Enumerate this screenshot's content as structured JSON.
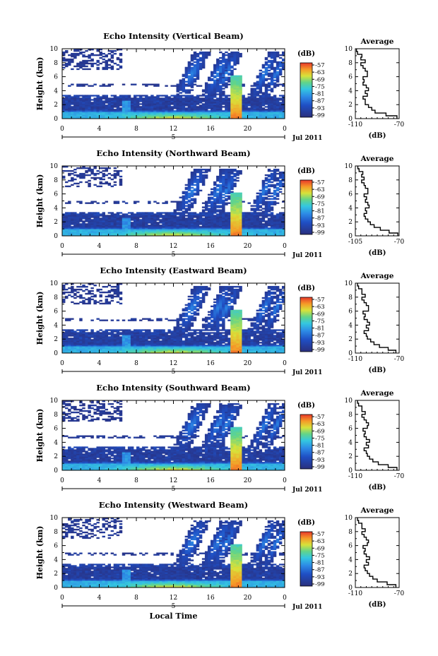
{
  "chart_data": [
    {
      "type": "heatmap",
      "title": "Echo Intensity (Vertical Beam)",
      "ylabel": "Height (km)",
      "x_ticks": [
        "0",
        "4",
        "8",
        "12",
        "16",
        "20",
        "0"
      ],
      "y_ticks": [
        "0",
        "2",
        "4",
        "6",
        "8",
        "10"
      ],
      "xlim": [
        0,
        24
      ],
      "ylim": [
        0,
        10
      ],
      "date_marker": "5",
      "date_label": "Jul 2011",
      "colorbar": {
        "label": "(dB)",
        "ticks": [
          "-57",
          "-63",
          "-69",
          "-75",
          "-81",
          "-87",
          "-93",
          "-99"
        ]
      },
      "average_profile": {
        "title": "Average",
        "xlabel": "(dB)",
        "x_ticks": [
          "-110",
          "-70"
        ],
        "xlim": [
          -110,
          -70
        ],
        "y_ticks": [
          "0",
          "2",
          "4",
          "6",
          "8",
          "10"
        ],
        "heights": [
          0.2,
          0.6,
          1.0,
          1.4,
          1.8,
          2.2,
          2.6,
          3.0,
          3.4,
          3.8,
          4.2,
          4.6,
          5.0,
          5.4,
          5.8,
          6.2,
          6.6,
          7.0,
          7.4,
          7.8,
          8.2,
          8.6,
          9.0,
          9.4,
          9.8
        ],
        "values": [
          -72,
          -82,
          -92,
          -95,
          -98,
          -101,
          -101,
          -103,
          -99,
          -101,
          -98,
          -100,
          -103,
          -102,
          -103,
          -99,
          -99,
          -101,
          -103,
          -105,
          -101,
          -105,
          -104,
          -108,
          -109
        ]
      }
    },
    {
      "type": "heatmap",
      "title": "Echo Intensity (Northward Beam)",
      "ylabel": "Height (km)",
      "x_ticks": [
        "0",
        "4",
        "8",
        "12",
        "16",
        "20",
        "0"
      ],
      "y_ticks": [
        "0",
        "2",
        "4",
        "6",
        "8",
        "10"
      ],
      "xlim": [
        0,
        24
      ],
      "ylim": [
        0,
        10
      ],
      "date_marker": "5",
      "date_label": "Jul 2011",
      "colorbar": {
        "label": "(dB)",
        "ticks": [
          "-57",
          "-63",
          "-69",
          "-75",
          "-81",
          "-87",
          "-93",
          "-99"
        ]
      },
      "average_profile": {
        "title": "Average",
        "xlabel": "(dB)",
        "x_ticks": [
          "-105",
          "-70"
        ],
        "xlim": [
          -105,
          -70
        ],
        "y_ticks": [
          "0",
          "2",
          "4",
          "6",
          "8",
          "10"
        ],
        "heights": [
          0.2,
          0.6,
          1.0,
          1.4,
          1.8,
          2.2,
          2.6,
          3.0,
          3.4,
          3.8,
          4.2,
          4.6,
          5.0,
          5.4,
          5.8,
          6.2,
          6.6,
          7.0,
          7.4,
          7.8,
          8.2,
          8.6,
          9.0,
          9.4,
          9.8
        ],
        "values": [
          -71,
          -78,
          -85,
          -90,
          -93,
          -95,
          -97,
          -98,
          -96,
          -97,
          -94,
          -95,
          -97,
          -96,
          -98,
          -95,
          -95,
          -97,
          -98,
          -100,
          -98,
          -100,
          -99,
          -102,
          -103
        ]
      }
    },
    {
      "type": "heatmap",
      "title": "Echo Intensity (Eastward Beam)",
      "ylabel": "Height (km)",
      "x_ticks": [
        "0",
        "4",
        "8",
        "12",
        "16",
        "20",
        "0"
      ],
      "y_ticks": [
        "0",
        "2",
        "4",
        "6",
        "8",
        "10"
      ],
      "xlim": [
        0,
        24
      ],
      "ylim": [
        0,
        10
      ],
      "date_marker": "5",
      "date_label": "Jul 2011",
      "colorbar": {
        "label": "(dB)",
        "ticks": [
          "-57",
          "-63",
          "-69",
          "-75",
          "-81",
          "-87",
          "-93",
          "-99"
        ]
      },
      "average_profile": {
        "title": "Average",
        "xlabel": "(dB)",
        "x_ticks": [
          "-110",
          "-70"
        ],
        "xlim": [
          -110,
          -70
        ],
        "y_ticks": [
          "0",
          "2",
          "4",
          "6",
          "8",
          "10"
        ],
        "heights": [
          0.2,
          0.6,
          1.0,
          1.4,
          1.8,
          2.2,
          2.6,
          3.0,
          3.4,
          3.8,
          4.2,
          4.6,
          5.0,
          5.4,
          5.8,
          6.2,
          6.6,
          7.0,
          7.4,
          7.8,
          8.2,
          8.6,
          9.0,
          9.4,
          9.8
        ],
        "values": [
          -73,
          -80,
          -88,
          -93,
          -96,
          -99,
          -100,
          -102,
          -98,
          -100,
          -97,
          -99,
          -102,
          -101,
          -103,
          -98,
          -98,
          -100,
          -102,
          -104,
          -101,
          -104,
          -104,
          -107,
          -108
        ]
      }
    },
    {
      "type": "heatmap",
      "title": "Echo Intensity (Southward Beam)",
      "ylabel": "Height (km)",
      "x_ticks": [
        "0",
        "4",
        "8",
        "12",
        "16",
        "20",
        "0"
      ],
      "y_ticks": [
        "0",
        "2",
        "4",
        "6",
        "8",
        "10"
      ],
      "xlim": [
        0,
        24
      ],
      "ylim": [
        0,
        10
      ],
      "date_marker": "5",
      "date_label": "Jul 2011",
      "colorbar": {
        "label": "(dB)",
        "ticks": [
          "-57",
          "-63",
          "-69",
          "-75",
          "-81",
          "-87",
          "-93",
          "-99"
        ]
      },
      "average_profile": {
        "title": "Average",
        "xlabel": "(dB)",
        "x_ticks": [
          "-110",
          "-70"
        ],
        "xlim": [
          -110,
          -70
        ],
        "y_ticks": [
          "0",
          "2",
          "4",
          "6",
          "8",
          "10"
        ],
        "heights": [
          0.2,
          0.6,
          1.0,
          1.4,
          1.8,
          2.2,
          2.6,
          3.0,
          3.4,
          3.8,
          4.2,
          4.6,
          5.0,
          5.4,
          5.8,
          6.2,
          6.6,
          7.0,
          7.4,
          7.8,
          8.2,
          8.6,
          9.0,
          9.4,
          9.8
        ],
        "values": [
          -72,
          -80,
          -89,
          -94,
          -97,
          -99,
          -100,
          -102,
          -98,
          -100,
          -97,
          -100,
          -102,
          -101,
          -103,
          -99,
          -98,
          -100,
          -102,
          -104,
          -101,
          -104,
          -104,
          -107,
          -108
        ]
      }
    },
    {
      "type": "heatmap",
      "title": "Echo Intensity (Westward Beam)",
      "ylabel": "Height (km)",
      "x_ticks": [
        "0",
        "4",
        "8",
        "12",
        "16",
        "20",
        "0"
      ],
      "y_ticks": [
        "0",
        "2",
        "4",
        "6",
        "8",
        "10"
      ],
      "xlim": [
        0,
        24
      ],
      "ylim": [
        0,
        10
      ],
      "date_marker": "5",
      "date_label": "Jul 2011",
      "xlabel": "Local Time",
      "colorbar": {
        "label": "(dB)",
        "ticks": [
          "-57",
          "-63",
          "-69",
          "-75",
          "-81",
          "-87",
          "-93",
          "-99"
        ]
      },
      "average_profile": {
        "title": "Average",
        "xlabel": "(dB)",
        "x_ticks": [
          "-110",
          "-70"
        ],
        "xlim": [
          -110,
          -70
        ],
        "y_ticks": [
          "0",
          "2",
          "4",
          "6",
          "8",
          "10"
        ],
        "heights": [
          0.2,
          0.6,
          1.0,
          1.4,
          1.8,
          2.2,
          2.6,
          3.0,
          3.4,
          3.8,
          4.2,
          4.6,
          5.0,
          5.4,
          5.8,
          6.2,
          6.6,
          7.0,
          7.4,
          7.8,
          8.2,
          8.6,
          9.0,
          9.4,
          9.8
        ],
        "values": [
          -73,
          -81,
          -90,
          -94,
          -97,
          -99,
          -101,
          -102,
          -98,
          -100,
          -97,
          -100,
          -102,
          -101,
          -103,
          -99,
          -98,
          -100,
          -102,
          -104,
          -101,
          -104,
          -104,
          -107,
          -108
        ]
      }
    }
  ]
}
